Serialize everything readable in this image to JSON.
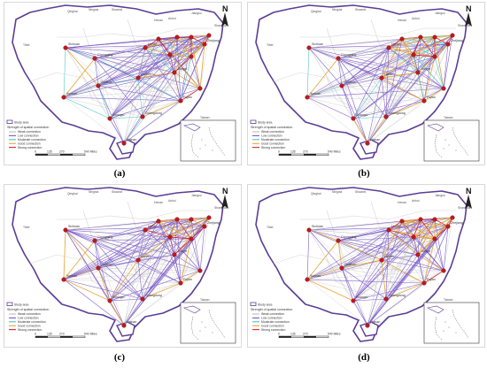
{
  "panels": [
    {
      "id": "a",
      "caption": "(a)"
    },
    {
      "id": "b",
      "caption": "(b)"
    },
    {
      "id": "c",
      "caption": "(c)"
    },
    {
      "id": "d",
      "caption": "(d)"
    }
  ],
  "map": {
    "north_label": "N",
    "regions": [
      "Tibet",
      "Qinghai",
      "Ningxia",
      "Shaanxi",
      "Henan",
      "Anhui",
      "Jiangsu",
      "Shanghai",
      "Taiwan"
    ],
    "cities": [
      "Sichuan",
      "Yunnan",
      "Chongqing",
      "Guizhou",
      "Guangxi",
      "Hunan",
      "Hubei",
      "Jiangxi",
      "Fujian",
      "Guangdong",
      "Hainan",
      "Zhejiang"
    ],
    "legend": {
      "title": "Strength of spatial connection",
      "boundary": "Study area",
      "entries": [
        {
          "label": "Weak connection",
          "color": "#bdbdbd"
        },
        {
          "label": "Low connection",
          "color": "#7a59c9"
        },
        {
          "label": "Moderate connection",
          "color": "#47c4c9"
        },
        {
          "label": "Good connection",
          "color": "#e5a537"
        },
        {
          "label": "Strong connection",
          "color": "#d8272c"
        }
      ]
    },
    "scale": {
      "ticks": [
        "0",
        "135",
        "270",
        "",
        "540 Miles"
      ]
    }
  }
}
